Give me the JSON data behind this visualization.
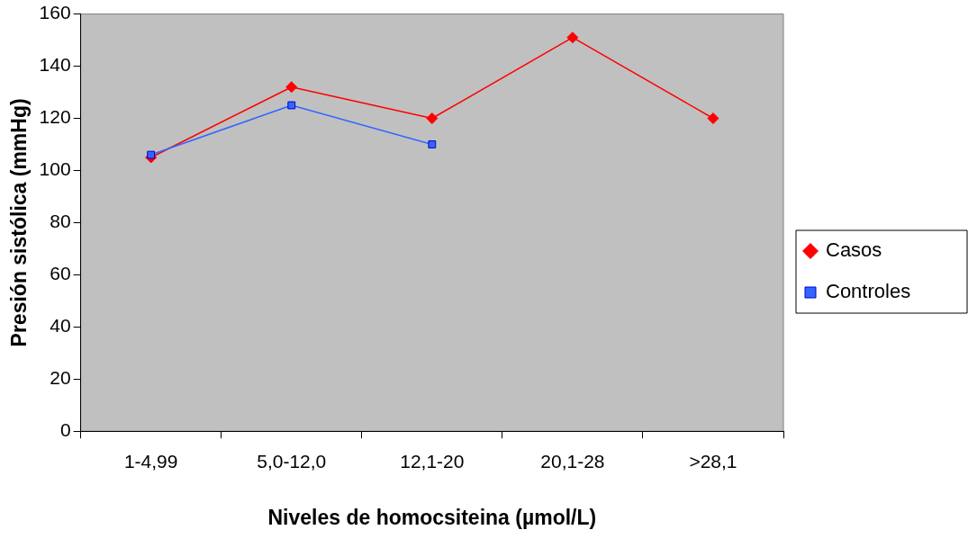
{
  "chart_data": {
    "type": "line",
    "xlabel": "Niveles de homocsiteina (µmol/L)",
    "ylabel": "Presión sistólica (mmHg)",
    "categories": [
      "1-4,99",
      "5,0-12,0",
      "12,1-20",
      "20,1-28",
      ">28,1"
    ],
    "series": [
      {
        "name": "Casos",
        "color": "#ff0000",
        "marker": "diamond",
        "values": [
          105,
          132,
          120,
          151,
          120
        ]
      },
      {
        "name": "Controles",
        "color": "#3366ff",
        "marker": "square",
        "values": [
          106,
          125,
          110,
          null,
          null
        ]
      }
    ],
    "ylim": [
      0,
      160
    ],
    "yticks": [
      0,
      20,
      40,
      60,
      80,
      100,
      120,
      140,
      160
    ],
    "grid": false,
    "legend": "right",
    "line_style": "solid"
  }
}
